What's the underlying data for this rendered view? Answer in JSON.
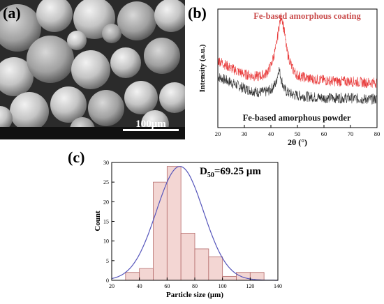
{
  "figure": {
    "panel_a": {
      "letter": "(a)",
      "scale_bar_label": "100μm"
    },
    "chart_data": [
      {
        "panel": "(b)",
        "type": "line",
        "xlabel": "2θ (°)",
        "ylabel": "Intensity (a.u.)",
        "xlim": [
          20,
          80
        ],
        "x_ticks": [
          "20",
          "30",
          "40",
          "50",
          "60",
          "70",
          "80"
        ],
        "grid": false,
        "series": [
          {
            "name": "Fe-based amorphous coating",
            "color": "#e83a3a",
            "peak_x": 44,
            "x": [
              20,
              25,
              30,
              35,
              38,
              40,
              42,
              43,
              44,
              45,
              46,
              48,
              50,
              55,
              60,
              65,
              70,
              75,
              80
            ],
            "y": [
              0.57,
              0.5,
              0.45,
              0.43,
              0.45,
              0.52,
              0.68,
              0.85,
              0.95,
              0.82,
              0.65,
              0.5,
              0.44,
              0.41,
              0.4,
              0.39,
              0.39,
              0.38,
              0.38
            ]
          },
          {
            "name": "Fe-based amorphous powder",
            "color": "#333333",
            "peak_x": 43,
            "x": [
              20,
              25,
              30,
              35,
              38,
              40,
              42,
              43,
              44,
              45,
              46,
              48,
              50,
              55,
              60,
              65,
              70,
              75,
              80
            ],
            "y": [
              0.43,
              0.38,
              0.33,
              0.3,
              0.3,
              0.32,
              0.38,
              0.5,
              0.4,
              0.33,
              0.3,
              0.28,
              0.27,
              0.26,
              0.25,
              0.25,
              0.25,
              0.24,
              0.24
            ]
          }
        ]
      },
      {
        "panel": "(c)",
        "type": "bar",
        "xlabel": "Particle size (μm)",
        "ylabel": "Count",
        "xlim": [
          20,
          140
        ],
        "ylim": [
          0,
          30
        ],
        "x_ticks": [
          "20",
          "40",
          "60",
          "80",
          "100",
          "120",
          "140"
        ],
        "y_ticks": [
          "0",
          "5",
          "10",
          "15",
          "20",
          "25",
          "30"
        ],
        "annotation_main": "D",
        "annotation_sub": "50",
        "annotation_value": "=69.25 μm",
        "bar_color": "#f3d6d3",
        "bar_edge_color": "#b36a6a",
        "fit_color": "#5555bb",
        "bins": [
          {
            "x0": 30,
            "x1": 40,
            "count": 2
          },
          {
            "x0": 40,
            "x1": 50,
            "count": 3
          },
          {
            "x0": 50,
            "x1": 60,
            "count": 25
          },
          {
            "x0": 60,
            "x1": 70,
            "count": 29
          },
          {
            "x0": 70,
            "x1": 80,
            "count": 12
          },
          {
            "x0": 80,
            "x1": 90,
            "count": 8
          },
          {
            "x0": 90,
            "x1": 100,
            "count": 6
          },
          {
            "x0": 100,
            "x1": 110,
            "count": 1
          },
          {
            "x0": 110,
            "x1": 120,
            "count": 2
          },
          {
            "x0": 120,
            "x1": 130,
            "count": 2
          }
        ],
        "fit": {
          "mean": 69.25,
          "sd": 17,
          "peak": 29
        }
      }
    ]
  }
}
